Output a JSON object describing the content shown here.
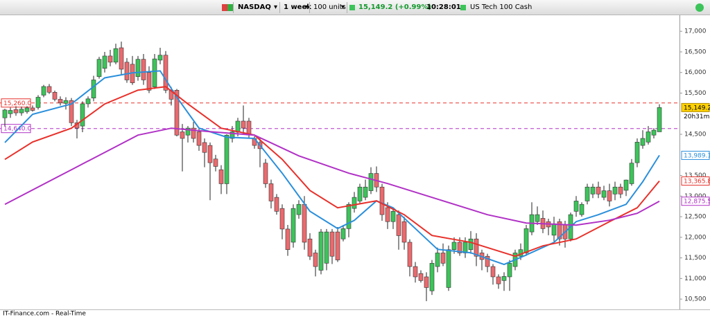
{
  "toolbar": {
    "symbol": "NASDAQ",
    "period": "1 week",
    "units": "100 units",
    "quote": "15,149.2 (+0.99%)",
    "time": "10:28:01",
    "instrument": "US Tech 100 Cash"
  },
  "footer": "IT-Finance.com - Real-Time",
  "chart_data": {
    "type": "candlestick",
    "open": [
      14900,
      15000,
      15100,
      15020,
      15050,
      15140,
      15150,
      15450,
      15660,
      15520,
      15350,
      15250,
      15320,
      14780,
      14700,
      15240,
      15380,
      15900,
      16100,
      16400,
      16250,
      16600,
      16250,
      16200,
      15900,
      16320,
      16000,
      15650,
      16300,
      16420,
      15570,
      15570,
      14560,
      14480,
      14650,
      14560,
      14300,
      14230,
      13900,
      13640,
      13300,
      14400,
      14550,
      14820,
      14820,
      14400,
      14300,
      13800,
      13300,
      12970,
      12700,
      12200,
      11880,
      12550,
      12800,
      11960,
      11620,
      11200,
      11370,
      12130,
      12130,
      11960,
      12210,
      12700,
      12880,
      12970,
      13130,
      13550,
      13220,
      12720,
      12380,
      12550,
      12380,
      11880,
      11290,
      11120,
      11040,
      10700,
      11290,
      11620,
      10780,
      11700,
      11880,
      11620,
      11700,
      11960,
      11620,
      11540,
      11290,
      11040,
      10950,
      11040,
      11290,
      11540,
      11620,
      12130,
      12380,
      12460,
      12380,
      12050,
      12380,
      12300,
      11960,
      12630,
      12550,
      12880,
      13050,
      13220,
      12970,
      13130,
      13050,
      13220,
      13140,
      13300,
      13810,
      14230,
      14310,
      14480,
      14560
    ],
    "high": [
      15120,
      15150,
      15180,
      15170,
      15180,
      15200,
      15450,
      15700,
      15720,
      15560,
      15420,
      15400,
      15380,
      14850,
      15300,
      15420,
      15920,
      16380,
      16500,
      16550,
      16700,
      16750,
      16350,
      16400,
      16400,
      16450,
      16150,
      16450,
      16600,
      16520,
      15650,
      15600,
      14750,
      14700,
      14800,
      14650,
      14400,
      14300,
      14000,
      13750,
      14500,
      14700,
      14900,
      15200,
      14900,
      14450,
      14400,
      13900,
      13400,
      13050,
      12800,
      12300,
      12800,
      12900,
      13000,
      12100,
      11700,
      12200,
      12200,
      12200,
      12250,
      12300,
      12850,
      13100,
      13300,
      13400,
      13700,
      13720,
      13300,
      12850,
      12700,
      12650,
      12500,
      11950,
      11400,
      11200,
      11150,
      11450,
      11750,
      11850,
      11800,
      12000,
      12000,
      12000,
      12150,
      12100,
      11700,
      11600,
      11350,
      11100,
      11150,
      11450,
      11700,
      11850,
      12300,
      12850,
      12750,
      12650,
      12450,
      12500,
      12450,
      12400,
      12600,
      13000,
      12850,
      13300,
      13300,
      13350,
      13250,
      13300,
      13350,
      13300,
      13400,
      13900,
      14400,
      14600,
      14700,
      14650,
      15230
    ],
    "low": [
      14700,
      14900,
      14950,
      14950,
      15000,
      15050,
      15100,
      15400,
      15480,
      15300,
      15200,
      15100,
      14700,
      14400,
      14550,
      15150,
      15300,
      15850,
      16000,
      16150,
      16200,
      15950,
      15750,
      15700,
      15800,
      15700,
      15500,
      15600,
      16200,
      15500,
      15200,
      14450,
      13600,
      14300,
      14300,
      14100,
      13700,
      12900,
      13600,
      13050,
      13050,
      14300,
      14450,
      14500,
      14400,
      14150,
      13700,
      13200,
      12700,
      12550,
      11950,
      11550,
      11750,
      12450,
      11700,
      11450,
      11050,
      11100,
      11200,
      11350,
      11400,
      11900,
      12000,
      12600,
      12800,
      12900,
      13050,
      13100,
      12400,
      12200,
      12200,
      11700,
      11700,
      11050,
      10900,
      10900,
      10450,
      10600,
      11150,
      11300,
      10700,
      11600,
      11550,
      11500,
      11600,
      11300,
      11200,
      11150,
      10850,
      10750,
      10700,
      10700,
      11200,
      11450,
      11550,
      12050,
      12300,
      12100,
      12050,
      11900,
      11800,
      11750,
      11900,
      12500,
      12500,
      12800,
      12950,
      12950,
      12900,
      12750,
      12900,
      12950,
      13000,
      13250,
      13700,
      14150,
      14250,
      14400,
      14560
    ],
    "close": [
      15090,
      15080,
      15020,
      15110,
      15140,
      15080,
      15400,
      15660,
      15520,
      15350,
      15260,
      15320,
      14780,
      14650,
      15240,
      15360,
      15820,
      16320,
      16400,
      16250,
      16580,
      16080,
      15820,
      15750,
      16320,
      15820,
      15570,
      16330,
      16420,
      15570,
      15350,
      14480,
      14400,
      14650,
      14400,
      14230,
      14060,
      13810,
      13720,
      13300,
      14480,
      14560,
      14820,
      14650,
      14480,
      14230,
      14150,
      13300,
      12880,
      12630,
      12200,
      11700,
      12700,
      12800,
      11880,
      11540,
      11290,
      12130,
      12130,
      11540,
      11450,
      12210,
      12800,
      12970,
      13220,
      13220,
      13550,
      13220,
      12550,
      12380,
      12630,
      12040,
      11880,
      11290,
      11040,
      10950,
      10780,
      11370,
      11620,
      11370,
      11700,
      11880,
      11620,
      11880,
      11960,
      11540,
      11460,
      11290,
      11040,
      10870,
      11050,
      11370,
      11620,
      11700,
      12210,
      12550,
      12550,
      12210,
      12250,
      12330,
      11960,
      11960,
      12550,
      12880,
      12800,
      13220,
      13220,
      13050,
      13130,
      12880,
      13220,
      13050,
      13390,
      13800,
      14310,
      14400,
      14560,
      14600,
      15149.2
    ],
    "up_color": "#3cc45a",
    "down_color": "#ea6a6e",
    "wick_color": "#222222",
    "series": [
      {
        "color": "#2a8fdc",
        "end_label": "13,989.1",
        "x": [
          0,
          5,
          12,
          18,
          23,
          28,
          31,
          35,
          40,
          45,
          50,
          55,
          60,
          63,
          67,
          70,
          74,
          78,
          84,
          90,
          94,
          99,
          103,
          107,
          112,
          115,
          118
        ],
        "values": [
          14300,
          14984,
          15236,
          15870,
          15990,
          16040,
          15400,
          14650,
          14430,
          14400,
          13556,
          12632,
          12212,
          12410,
          12884,
          12716,
          12212,
          11708,
          11624,
          11340,
          11570,
          11876,
          12380,
          12548,
          12800,
          13350,
          13989.1
        ]
      },
      {
        "color": "#e8302a",
        "end_label": "13,365.8",
        "x": [
          0,
          5,
          12,
          18,
          24,
          29,
          33,
          39,
          45,
          50,
          55,
          60,
          67,
          72,
          77,
          84,
          92,
          97,
          103,
          109,
          114,
          118
        ],
        "values": [
          13890,
          14312,
          14648,
          15236,
          15572,
          15656,
          15236,
          14648,
          14480,
          13892,
          13136,
          12716,
          12884,
          12548,
          12044,
          11876,
          11540,
          11792,
          11960,
          12380,
          12716,
          13365.8
        ]
      },
      {
        "color": "#b131c6",
        "end_label": "12,875.5",
        "x": [
          0,
          12,
          18,
          24,
          30,
          37,
          45,
          53,
          62,
          69,
          77,
          87,
          94,
          103,
          109,
          114,
          118
        ],
        "values": [
          12800,
          13640,
          14060,
          14480,
          14648,
          14564,
          14480,
          13976,
          13556,
          13304,
          12968,
          12548,
          12346,
          12296,
          12414,
          12582,
          12875.5
        ]
      }
    ],
    "levels": [
      {
        "value": 15260,
        "label": "15,260.0",
        "color": "#e8302a"
      },
      {
        "value": 14640,
        "label": "14,640.0",
        "color": "#b131c6"
      }
    ],
    "last_price": {
      "value": 15149.2,
      "label": "15,149.2",
      "countdown": "20h31m",
      "color": "#ffd200"
    },
    "xlim": [
      -0.875,
      121.625
    ],
    "ylim": [
      10250,
      17390
    ],
    "yticks": [
      {
        "value": 10500,
        "label": "10,500"
      },
      {
        "value": 11000,
        "label": "11,000"
      },
      {
        "value": 11500,
        "label": "11,500"
      },
      {
        "value": 12000,
        "label": "12,000"
      },
      {
        "value": 12500,
        "label": "12,500"
      },
      {
        "value": 13000,
        "label": "13,000"
      },
      {
        "value": 13500,
        "label": "13,500"
      },
      {
        "value": 14500,
        "label": "14,500"
      },
      {
        "value": 15500,
        "label": "15,500"
      },
      {
        "value": 16000,
        "label": "16,000"
      },
      {
        "value": 16500,
        "label": "16,500"
      },
      {
        "value": 17000,
        "label": "17,000"
      }
    ]
  }
}
